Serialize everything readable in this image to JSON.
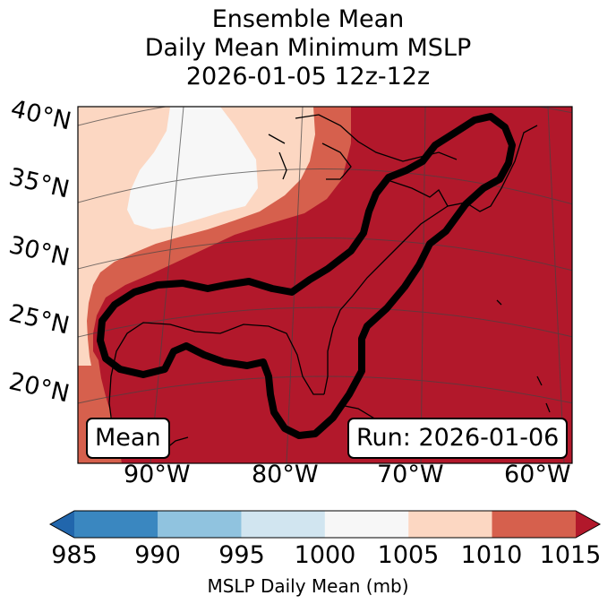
{
  "title": {
    "line1": "Ensemble Mean",
    "line2": "Daily Mean Minimum MSLP",
    "line3": "2026-01-05 12z-12z"
  },
  "lat_labels": [
    "40°N",
    "35°N",
    "30°N",
    "25°N",
    "20°N"
  ],
  "lon_labels": [
    "90°W",
    "80°W",
    "70°W",
    "60°W"
  ],
  "panel": {
    "left_label": "Mean",
    "right_label": "Run: 2026-01-06"
  },
  "colorbar": {
    "ticks": [
      "985",
      "990",
      "995",
      "1000",
      "1005",
      "1010",
      "1015"
    ],
    "label": "MSLP Daily Mean (mb)",
    "colors": [
      "#3a87c0",
      "#90c3df",
      "#d1e5f0",
      "#f7f7f7",
      "#fcd7c2",
      "#d6604d",
      "#b2182b"
    ]
  },
  "field_colors": {
    "bg": "#b2182b",
    "band1010": "#d6604d",
    "band1005": "#fcd7c2",
    "band1000": "#f7f7f7",
    "contour": "#000000"
  }
}
